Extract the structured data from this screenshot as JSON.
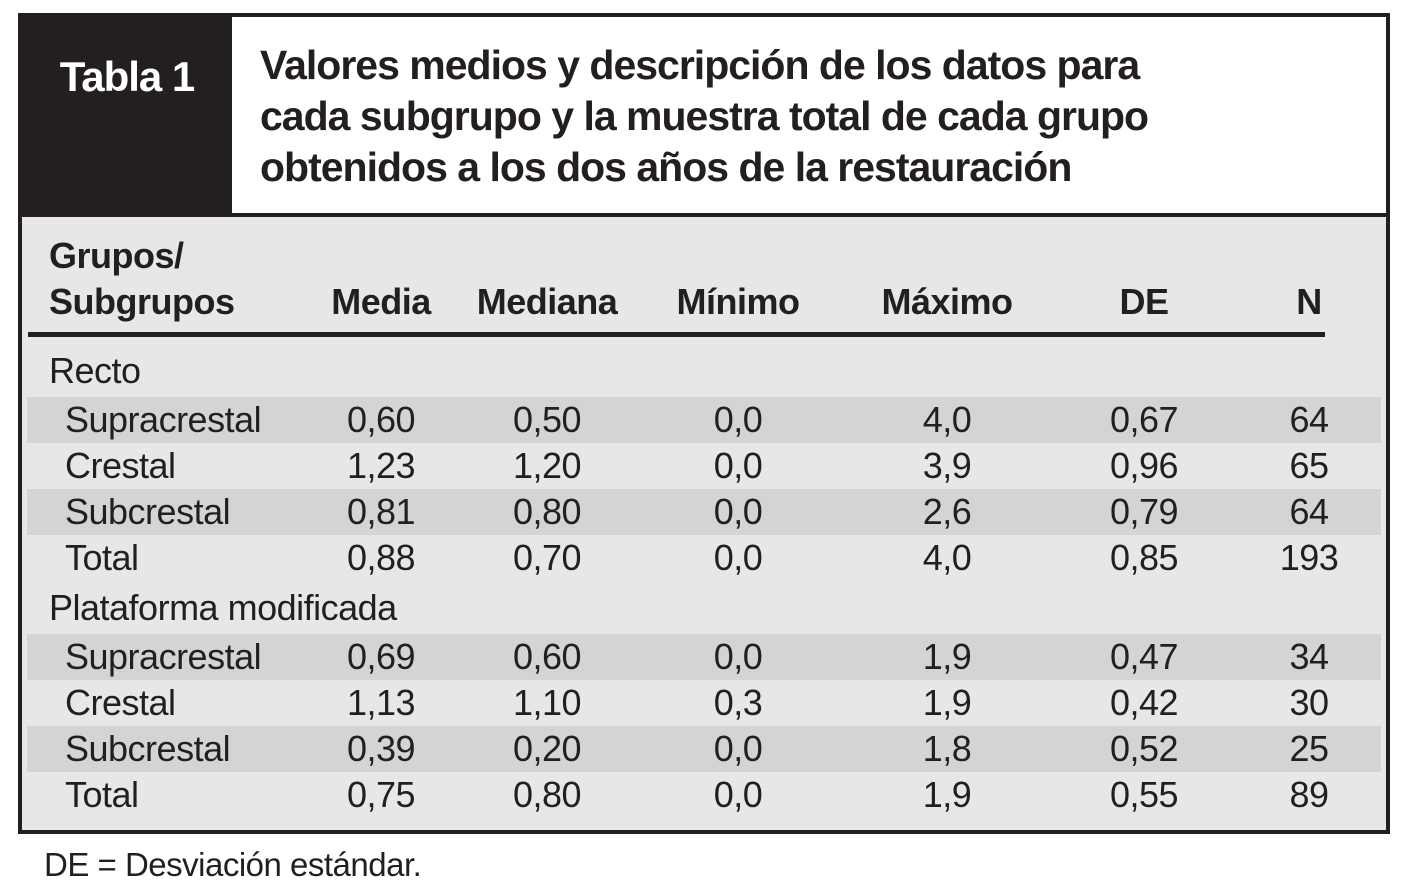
{
  "banner": {
    "tag": "Tabla 1",
    "title_lines": [
      "Valores medios y descripción de los datos para",
      "cada subgrupo y la muestra total de cada grupo",
      "obtenidos a los dos años de la restauración"
    ]
  },
  "table": {
    "header": {
      "col1_line1": "Grupos/",
      "col1_line2": "Subgrupos",
      "cols": [
        "Media",
        "Mediana",
        "Mínimo",
        "Máximo",
        "DE",
        "N"
      ]
    },
    "groups": [
      {
        "name": "Recto",
        "rows": [
          {
            "label": "Supracrestal",
            "values": [
              "0,60",
              "0,50",
              "0,0",
              "4,0",
              "0,67",
              "64"
            ]
          },
          {
            "label": "Crestal",
            "values": [
              "1,23",
              "1,20",
              "0,0",
              "3,9",
              "0,96",
              "65"
            ]
          },
          {
            "label": "Subcrestal",
            "values": [
              "0,81",
              "0,80",
              "0,0",
              "2,6",
              "0,79",
              "64"
            ]
          },
          {
            "label": "Total",
            "values": [
              "0,88",
              "0,70",
              "0,0",
              "4,0",
              "0,85",
              "193"
            ]
          }
        ]
      },
      {
        "name": "Plataforma modificada",
        "rows": [
          {
            "label": "Supracrestal",
            "values": [
              "0,69",
              "0,60",
              "0,0",
              "1,9",
              "0,47",
              "34"
            ]
          },
          {
            "label": "Crestal",
            "values": [
              "1,13",
              "1,10",
              "0,3",
              "1,9",
              "0,42",
              "30"
            ]
          },
          {
            "label": "Subcrestal",
            "values": [
              "0,39",
              "0,20",
              "0,0",
              "1,8",
              "0,52",
              "25"
            ]
          },
          {
            "label": "Total",
            "values": [
              "0,75",
              "0,80",
              "0,0",
              "1,9",
              "0,55",
              "89"
            ]
          }
        ]
      }
    ]
  },
  "footnote": "DE = Desviación estándar.",
  "colors": {
    "ink": "#231f20",
    "body_bg": "#e7e7e9",
    "band_bg": "#d3d4d6"
  }
}
